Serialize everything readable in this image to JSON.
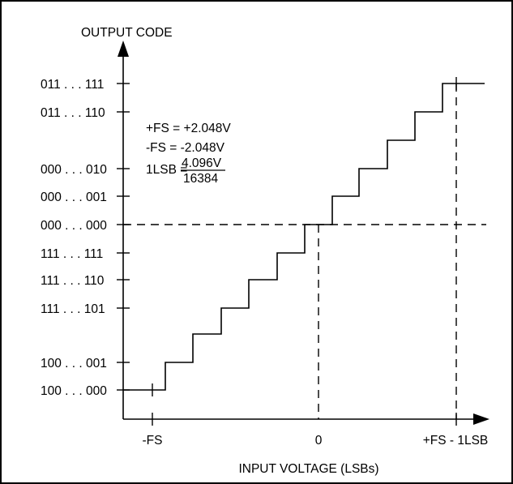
{
  "diagram": {
    "y_axis_title": "OUTPUT CODE",
    "x_axis_title": "INPUT VOLTAGE (LSBs)",
    "y_codes": [
      "011 . . . 111",
      "011 . . . 110",
      "000 . . . 010",
      "000 . . . 001",
      "000 . . . 000",
      "111 . . . 111",
      "111 . . . 110",
      "111 . . . 101",
      "100 . . . 001",
      "100 . . . 000"
    ],
    "x_labels": {
      "neg_fs": "-FS",
      "zero": "0",
      "pos_fs": "+FS - 1LSB"
    },
    "annotation": {
      "pos_fs": "+FS = +2.048V",
      "neg_fs": "-FS = -2.048V",
      "lsb_prefix": "1LSB =",
      "lsb_numerator": "4.096V",
      "lsb_denominator": "16384"
    }
  }
}
